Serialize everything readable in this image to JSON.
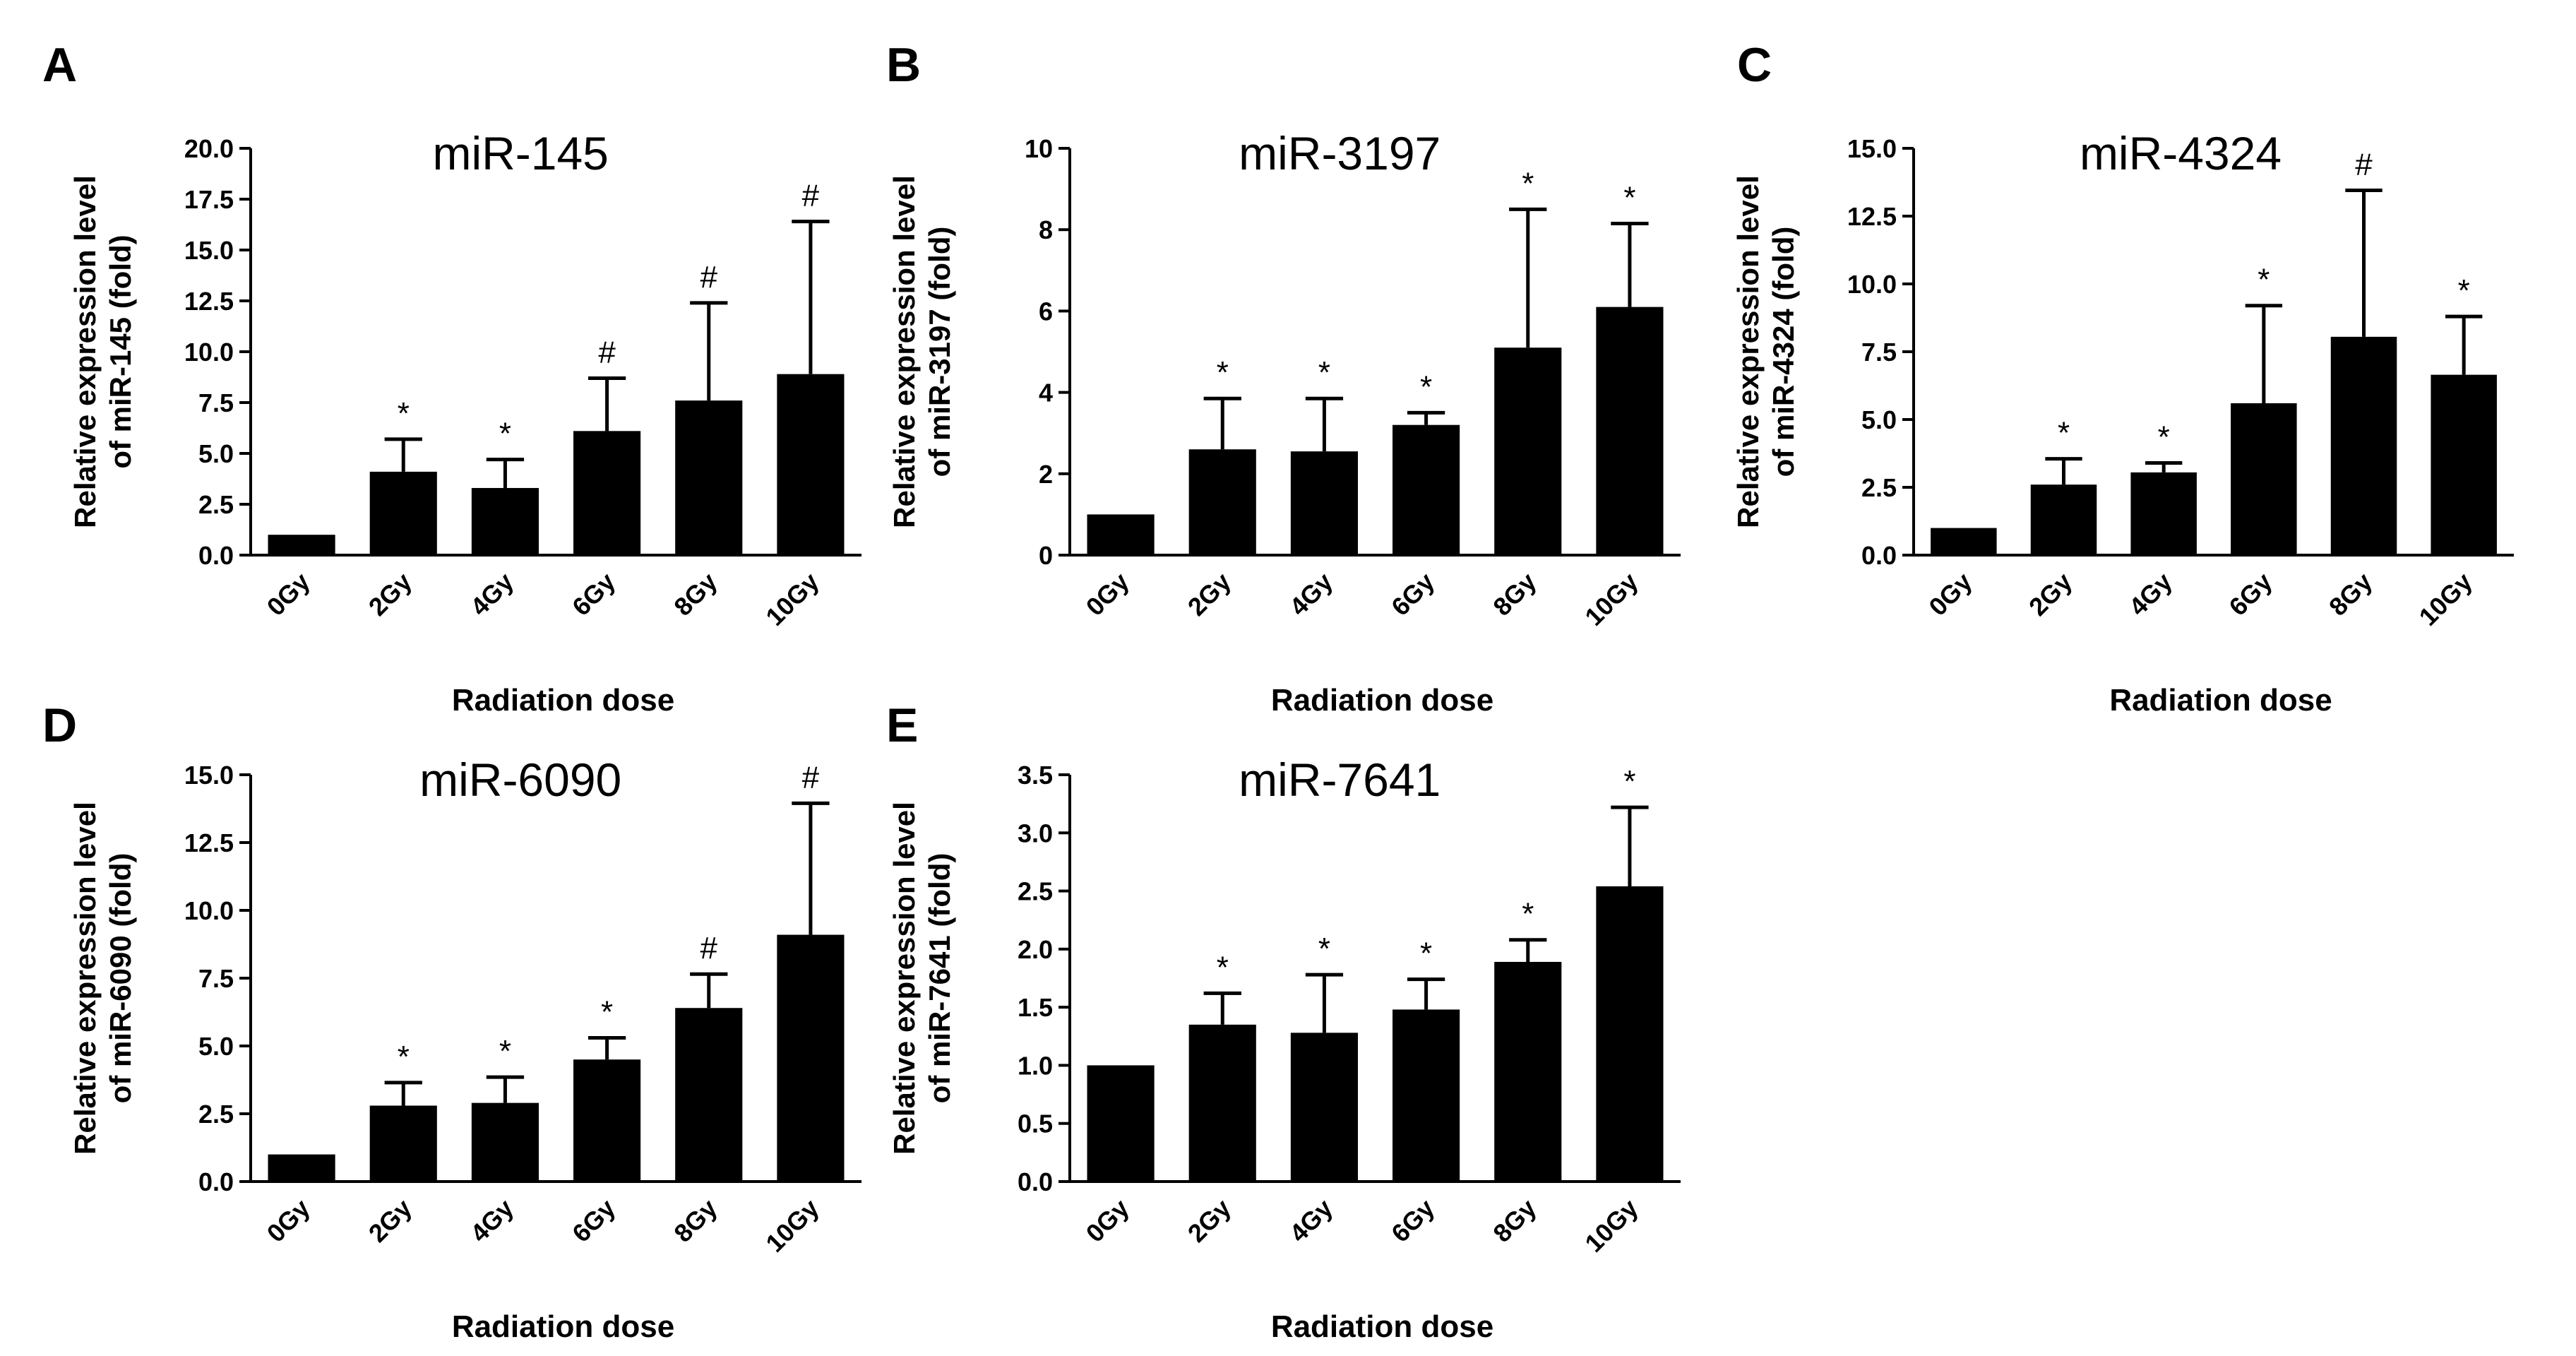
{
  "xlabel": "Radiation dose",
  "categories": [
    "0Gy",
    "2Gy",
    "4Gy",
    "6Gy",
    "8Gy",
    "10Gy"
  ],
  "colors": {
    "bar": "#000000",
    "background": "#ffffff"
  },
  "chart_data": [
    {
      "panel": "A",
      "type": "bar",
      "title": "miR-145",
      "ylabel": [
        "Relative expression level",
        "of miR-145 (fold)"
      ],
      "xlabel": "Radiation dose",
      "categories": [
        "0Gy",
        "2Gy",
        "4Gy",
        "6Gy",
        "8Gy",
        "10Gy"
      ],
      "values": [
        1.0,
        4.1,
        3.3,
        6.1,
        7.6,
        8.9
      ],
      "errors": [
        0,
        1.6,
        1.4,
        2.6,
        4.8,
        7.5
      ],
      "significance": [
        "",
        "*",
        "*",
        "#",
        "#",
        "#"
      ],
      "ylim": [
        0,
        20
      ],
      "yticks": [
        "0.0",
        "2.5",
        "5.0",
        "7.5",
        "10.0",
        "12.5",
        "15.0",
        "17.5",
        "20.0"
      ]
    },
    {
      "panel": "B",
      "type": "bar",
      "title": "miR-3197",
      "ylabel": [
        "Relative expression level",
        "of miR-3197 (fold)"
      ],
      "xlabel": "Radiation dose",
      "categories": [
        "0Gy",
        "2Gy",
        "4Gy",
        "6Gy",
        "8Gy",
        "10Gy"
      ],
      "values": [
        1.0,
        2.6,
        2.55,
        3.2,
        5.1,
        6.1
      ],
      "errors": [
        0,
        1.25,
        1.3,
        0.3,
        3.4,
        2.05
      ],
      "significance": [
        "",
        "*",
        "*",
        "*",
        "*",
        "*"
      ],
      "ylim": [
        0,
        10
      ],
      "yticks": [
        "0",
        "2",
        "4",
        "6",
        "8",
        "10"
      ]
    },
    {
      "panel": "C",
      "type": "bar",
      "title": "miR-4324",
      "ylabel": [
        "Relative expression level",
        "of miR-4324 (fold)"
      ],
      "xlabel": "Radiation dose",
      "categories": [
        "0Gy",
        "2Gy",
        "4Gy",
        "6Gy",
        "8Gy",
        "10Gy"
      ],
      "values": [
        1.0,
        2.6,
        3.05,
        5.6,
        8.05,
        6.65
      ],
      "errors": [
        0,
        0.95,
        0.35,
        3.6,
        5.4,
        2.15
      ],
      "significance": [
        "",
        "*",
        "*",
        "*",
        "#",
        "*"
      ],
      "ylim": [
        0,
        15
      ],
      "yticks": [
        "0.0",
        "2.5",
        "5.0",
        "7.5",
        "10.0",
        "12.5",
        "15.0"
      ]
    },
    {
      "panel": "D",
      "type": "bar",
      "title": "miR-6090",
      "ylabel": [
        "Relative expression level",
        "of miR-6090 (fold)"
      ],
      "xlabel": "Radiation dose",
      "categories": [
        "0Gy",
        "2Gy",
        "4Gy",
        "6Gy",
        "8Gy",
        "10Gy"
      ],
      "values": [
        1.0,
        2.8,
        2.9,
        4.5,
        6.4,
        9.1
      ],
      "errors": [
        0,
        0.85,
        0.95,
        0.8,
        1.25,
        4.85
      ],
      "significance": [
        "",
        "*",
        "*",
        "*",
        "#",
        "#"
      ],
      "ylim": [
        0,
        15
      ],
      "yticks": [
        "0.0",
        "2.5",
        "5.0",
        "7.5",
        "10.0",
        "12.5",
        "15.0"
      ]
    },
    {
      "panel": "E",
      "type": "bar",
      "title": "miR-7641",
      "ylabel": [
        "Relative expression level",
        "of miR-7641 (fold)"
      ],
      "xlabel": "Radiation dose",
      "categories": [
        "0Gy",
        "2Gy",
        "4Gy",
        "6Gy",
        "8Gy",
        "10Gy"
      ],
      "values": [
        1.0,
        1.35,
        1.28,
        1.48,
        1.89,
        2.54
      ],
      "errors": [
        0,
        0.27,
        0.5,
        0.26,
        0.19,
        0.68
      ],
      "significance": [
        "",
        "*",
        "*",
        "*",
        "*",
        "*"
      ],
      "ylim": [
        0,
        3.5
      ],
      "yticks": [
        "0.0",
        "0.5",
        "1.0",
        "1.5",
        "2.0",
        "2.5",
        "3.0",
        "3.5"
      ]
    }
  ]
}
